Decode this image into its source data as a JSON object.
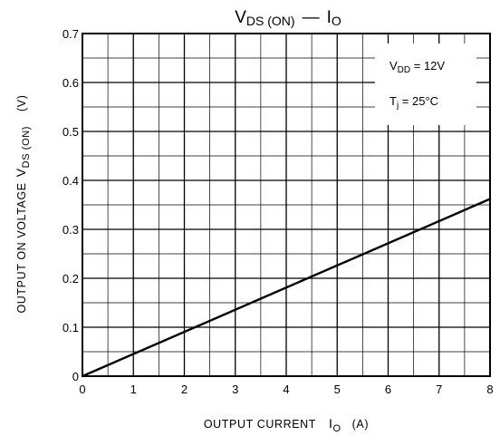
{
  "chart_data": {
    "type": "line",
    "title": {
      "main": "V",
      "sub": "DS (ON)",
      "dash": "—",
      "main2": "I",
      "sub2": "O"
    },
    "xlabel": {
      "text": "OUTPUT CURRENT",
      "symbol": "I",
      "sub": "O",
      "unit": "(A)"
    },
    "ylabel": {
      "text": "OUTPUT ON VOLTAGE",
      "symbol": "V",
      "sub": "DS (ON)",
      "unit": "(V)"
    },
    "xlim": [
      0,
      8
    ],
    "ylim": [
      0,
      0.7
    ],
    "x_ticks": [
      "0",
      "1",
      "2",
      "3",
      "4",
      "5",
      "6",
      "7",
      "8"
    ],
    "y_ticks": [
      "0",
      "0.1",
      "0.2",
      "0.3",
      "0.4",
      "0.5",
      "0.6",
      "0.7"
    ],
    "x_minor_step": 0.5,
    "y_minor_step": 0.05,
    "grid": true,
    "annotations": [
      {
        "symbol": "V",
        "sub": "DD",
        "rest": " = 12V"
      },
      {
        "symbol": "T",
        "sub": "j",
        "rest": " = 25°C"
      }
    ],
    "series": [
      {
        "x": [
          0,
          8
        ],
        "y": [
          0,
          0.362
        ]
      }
    ]
  }
}
